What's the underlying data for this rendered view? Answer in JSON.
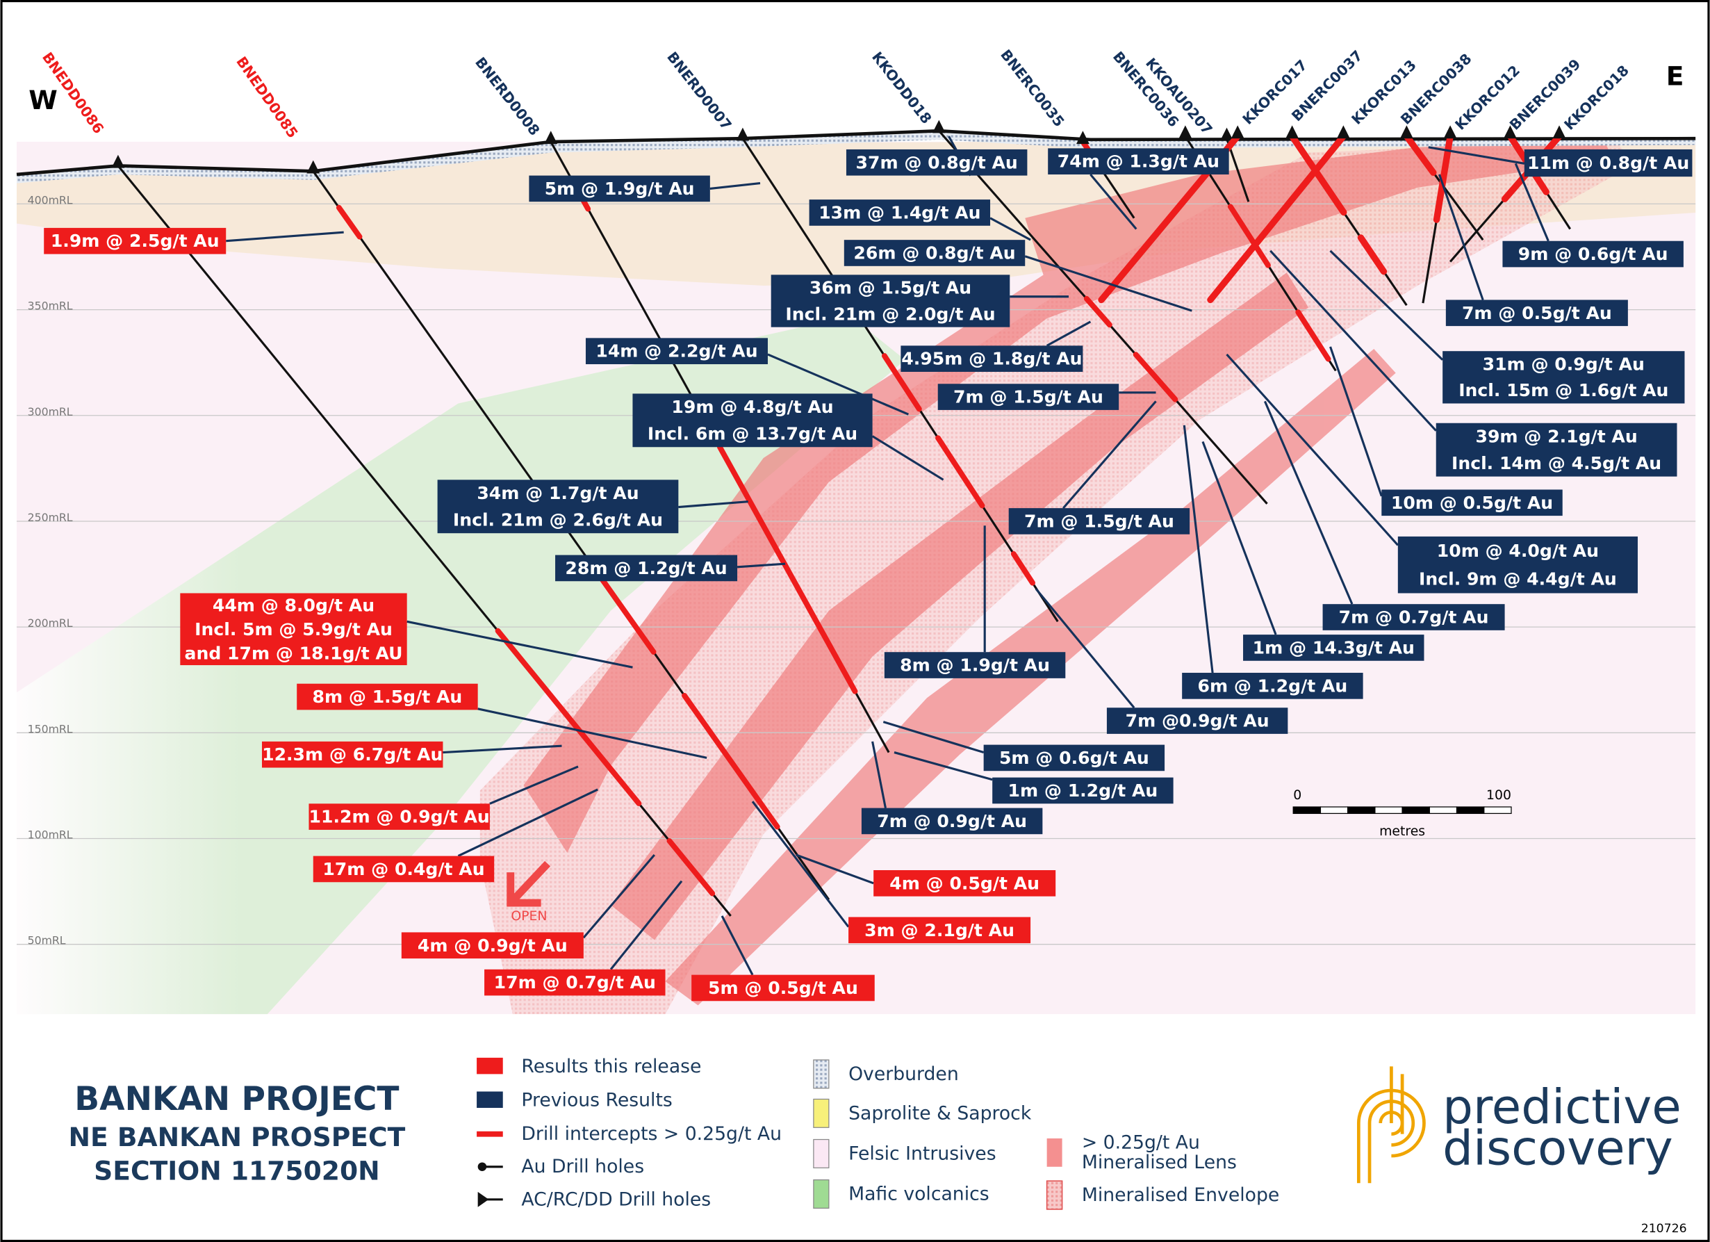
{
  "compass": {
    "west": "W",
    "east": "E"
  },
  "rl_labels": [
    "400mRL",
    "350mRL",
    "300mRL",
    "250mRL",
    "200mRL",
    "150mRL",
    "100mRL",
    "50mRL"
  ],
  "holes_this_release": [
    "BNEDD0086",
    "BNEDD0085"
  ],
  "holes_previous": [
    "BNERD0008",
    "BNERD0007",
    "KKODD018",
    "BNERC0035",
    "BNERC0036",
    "KKOAU0207",
    "KKORC017",
    "BNERC0037",
    "KKORC013",
    "BNERC0038",
    "KKORC012",
    "BNERC0039",
    "KKORC018"
  ],
  "results_this_release": [
    {
      "lines": [
        "1.9m @ 2.5g/t Au"
      ]
    },
    {
      "lines": [
        "44m @ 8.0g/t Au",
        "Incl. 5m @ 5.9g/t Au",
        "and 17m @ 18.1g/t AU"
      ]
    },
    {
      "lines": [
        "8m @ 1.5g/t Au"
      ]
    },
    {
      "lines": [
        "12.3m @ 6.7g/t Au"
      ]
    },
    {
      "lines": [
        "11.2m @ 0.9g/t Au"
      ]
    },
    {
      "lines": [
        "17m @ 0.4g/t Au"
      ]
    },
    {
      "lines": [
        "4m @ 0.9g/t Au"
      ]
    },
    {
      "lines": [
        "17m @ 0.7g/t Au"
      ]
    },
    {
      "lines": [
        "5m @ 0.5g/t Au"
      ]
    },
    {
      "lines": [
        "4m @ 0.5g/t Au"
      ]
    },
    {
      "lines": [
        "3m @ 2.1g/t Au"
      ]
    }
  ],
  "previous_results": [
    {
      "lines": [
        "5m @ 1.9g/t Au"
      ]
    },
    {
      "lines": [
        "37m @ 0.8g/t Au"
      ]
    },
    {
      "lines": [
        "74m @ 1.3g/t Au"
      ]
    },
    {
      "lines": [
        "11m @ 0.8g/t Au"
      ]
    },
    {
      "lines": [
        "13m @ 1.4g/t Au"
      ]
    },
    {
      "lines": [
        "26m @ 0.8g/t Au"
      ]
    },
    {
      "lines": [
        "9m @ 0.6g/t Au"
      ]
    },
    {
      "lines": [
        "36m @ 1.5g/t Au",
        "Incl. 21m @ 2.0g/t Au"
      ]
    },
    {
      "lines": [
        "7m @ 0.5g/t Au"
      ]
    },
    {
      "lines": [
        "14m @ 2.2g/t Au"
      ]
    },
    {
      "lines": [
        "4.95m @ 1.8g/t Au"
      ]
    },
    {
      "lines": [
        "31m @ 0.9g/t Au",
        "Incl. 15m @ 1.6g/t Au"
      ]
    },
    {
      "lines": [
        "7m @ 1.5g/t Au"
      ]
    },
    {
      "lines": [
        "19m @ 4.8g/t Au",
        "Incl. 6m @ 13.7g/t Au"
      ]
    },
    {
      "lines": [
        "39m @ 2.1g/t Au",
        "Incl. 14m @ 4.5g/t Au"
      ]
    },
    {
      "lines": [
        "34m @ 1.7g/t Au",
        "Incl. 21m @ 2.6g/t Au"
      ]
    },
    {
      "lines": [
        "10m @ 0.5g/t Au"
      ]
    },
    {
      "lines": [
        "7m @ 1.5g/t Au"
      ]
    },
    {
      "lines": [
        "10m @ 4.0g/t Au",
        "Incl. 9m @ 4.4g/t Au"
      ]
    },
    {
      "lines": [
        "28m @ 1.2g/t Au"
      ]
    },
    {
      "lines": [
        "7m @ 0.7g/t Au"
      ]
    },
    {
      "lines": [
        "1m @ 14.3g/t Au"
      ]
    },
    {
      "lines": [
        "8m @ 1.9g/t Au"
      ]
    },
    {
      "lines": [
        "6m @ 1.2g/t Au"
      ]
    },
    {
      "lines": [
        "7m @0.9g/t Au"
      ]
    },
    {
      "lines": [
        "5m @ 0.6g/t Au"
      ]
    },
    {
      "lines": [
        "1m @ 1.2g/t Au"
      ]
    },
    {
      "lines": [
        "7m @ 0.9g/t Au"
      ]
    }
  ],
  "open_label": "OPEN",
  "scale_bar": {
    "start": "0",
    "end": "100",
    "unit": "metres"
  },
  "title": {
    "lines": [
      "BANKAN PROJECT",
      "NE BANKAN PROSPECT",
      "SECTION 1175020N"
    ]
  },
  "legend": {
    "symbols": [
      "Results this release",
      "Previous Results",
      "Drill intercepts > 0.25g/t Au",
      "Au Drill holes",
      "AC/RC/DD Drill holes"
    ],
    "geology": [
      "Overburden",
      "Saprolite & Saprock",
      "Felsic Intrusives",
      "Mafic volcanics"
    ],
    "mineralisation": [
      {
        "lines": [
          "> 0.25g/t Au",
          "Mineralised Lens"
        ]
      },
      {
        "lines": [
          "Mineralised Envelope"
        ]
      }
    ]
  },
  "logo": {
    "lines": [
      "predictive",
      "discovery"
    ]
  },
  "figure_id": "210726"
}
